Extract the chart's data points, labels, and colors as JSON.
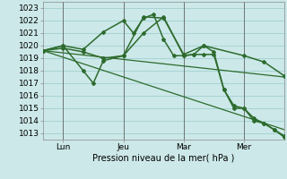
{
  "xlabel": "Pression niveau de la mer( hPa )",
  "background_color": "#cce8e8",
  "grid_color": "#99cccc",
  "line_color": "#2d6b2d",
  "ylim": [
    1012.5,
    1023.5
  ],
  "xlim": [
    0,
    96
  ],
  "yticks": [
    1013,
    1014,
    1015,
    1016,
    1017,
    1018,
    1019,
    1020,
    1021,
    1022,
    1023
  ],
  "xtick_positions": [
    8,
    32,
    56,
    80
  ],
  "xtick_labels": [
    "Lun",
    "Jeu",
    "Mar",
    "Mer"
  ],
  "vlines": [
    8,
    32,
    56,
    80
  ],
  "series": [
    {
      "x": [
        0,
        96
      ],
      "y": [
        1019.6,
        1013.3
      ],
      "marker": false,
      "linewidth": 0.9
    },
    {
      "x": [
        0,
        96
      ],
      "y": [
        1019.6,
        1017.5
      ],
      "marker": false,
      "linewidth": 0.9
    },
    {
      "x": [
        0,
        8,
        16,
        24,
        32,
        36,
        40,
        44,
        48,
        52,
        56,
        60,
        64,
        80,
        88,
        96
      ],
      "y": [
        1019.6,
        1020.0,
        1019.7,
        1021.1,
        1022.0,
        1021.0,
        1022.2,
        1022.5,
        1020.5,
        1019.2,
        1019.2,
        1019.3,
        1020.0,
        1019.2,
        1018.7,
        1017.6
      ],
      "marker": true,
      "linewidth": 1.1
    },
    {
      "x": [
        0,
        8,
        16,
        20,
        24,
        32,
        40,
        48,
        56,
        64,
        68,
        72,
        76,
        80,
        84,
        88,
        92,
        96
      ],
      "y": [
        1019.6,
        1020.0,
        1018.0,
        1017.0,
        1018.8,
        1019.2,
        1022.3,
        1022.2,
        1019.3,
        1020.0,
        1019.5,
        1016.5,
        1015.2,
        1015.0,
        1014.2,
        1013.8,
        1013.3,
        1012.7
      ],
      "marker": true,
      "linewidth": 1.1
    },
    {
      "x": [
        0,
        8,
        16,
        24,
        32,
        40,
        48,
        56,
        60,
        64,
        68,
        72,
        76,
        80,
        84,
        88,
        92,
        96
      ],
      "y": [
        1019.6,
        1019.8,
        1019.5,
        1019.0,
        1019.2,
        1021.0,
        1022.3,
        1019.2,
        1019.3,
        1019.3,
        1019.3,
        1016.5,
        1015.0,
        1015.0,
        1014.0,
        1013.8,
        1013.3,
        1012.8
      ],
      "marker": true,
      "linewidth": 1.1
    }
  ]
}
